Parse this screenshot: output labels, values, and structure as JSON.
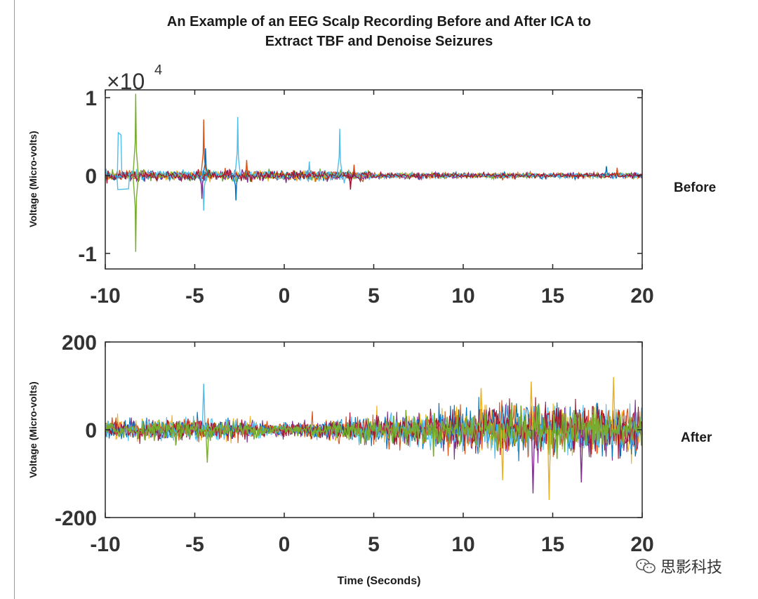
{
  "title_line1": "An Example of an EEG Scalp Recording Before and After ICA to",
  "title_line2": "Extract TBF and Denoise Seizures",
  "watermark_text": "思影科技",
  "colors": {
    "blue": "#0072BD",
    "orange": "#D95319",
    "yellow": "#EDB120",
    "purple": "#7E2F8E",
    "green": "#77AC30",
    "cyan": "#4DBEEE",
    "red": "#A2142F"
  },
  "chart_data": [
    {
      "type": "line",
      "name": "before",
      "side_label": "Before",
      "ylabel": "Voltage (Micro-volts)",
      "exponent_label": "×10",
      "exponent_power": "4",
      "xlim": [
        -10,
        20
      ],
      "ylim": [
        -1.2,
        1.1
      ],
      "xticks": [
        -10,
        -5,
        0,
        5,
        10,
        15,
        20
      ],
      "xtick_labels": [
        "-10",
        "-5",
        "0",
        "5",
        "10",
        "15",
        "20"
      ],
      "yticks": [
        -1,
        0,
        1
      ],
      "ytick_labels": [
        "-1",
        "0",
        "1"
      ],
      "baseline_noise": 0.025,
      "artifacts": [
        {
          "t": -9.2,
          "amp": 0.55,
          "color": "cyan",
          "kind": "block",
          "width": 0.25
        },
        {
          "t": -9.0,
          "amp": -0.18,
          "color": "cyan",
          "kind": "block",
          "width": 0.7
        },
        {
          "t": -8.3,
          "amp": 1.05,
          "color": "green",
          "kind": "spike"
        },
        {
          "t": -8.3,
          "amp": -0.98,
          "color": "green",
          "kind": "spike"
        },
        {
          "t": -4.5,
          "amp": 0.72,
          "color": "orange",
          "kind": "spike"
        },
        {
          "t": -4.5,
          "amp": -0.45,
          "color": "cyan",
          "kind": "spike"
        },
        {
          "t": -4.6,
          "amp": -0.3,
          "color": "purple",
          "kind": "spike"
        },
        {
          "t": -4.4,
          "amp": 0.35,
          "color": "blue",
          "kind": "spike"
        },
        {
          "t": -2.6,
          "amp": 0.75,
          "color": "cyan",
          "kind": "spike"
        },
        {
          "t": -2.7,
          "amp": -0.32,
          "color": "blue",
          "kind": "spike"
        },
        {
          "t": -2.1,
          "amp": 0.2,
          "color": "orange",
          "kind": "spike"
        },
        {
          "t": 1.4,
          "amp": 0.18,
          "color": "cyan",
          "kind": "spike"
        },
        {
          "t": 3.1,
          "amp": 0.6,
          "color": "cyan",
          "kind": "spike"
        },
        {
          "t": 3.7,
          "amp": -0.18,
          "color": "red",
          "kind": "spike"
        },
        {
          "t": 3.9,
          "amp": 0.14,
          "color": "orange",
          "kind": "spike"
        },
        {
          "t": 18.0,
          "amp": 0.12,
          "color": "blue",
          "kind": "spike"
        },
        {
          "t": 18.6,
          "amp": 0.1,
          "color": "orange",
          "kind": "spike"
        }
      ]
    },
    {
      "type": "line",
      "name": "after",
      "side_label": "After",
      "ylabel": "Voltage (Micro-volts)",
      "xlabel": "Time (Seconds)",
      "xlim": [
        -10,
        20
      ],
      "ylim": [
        -200,
        200
      ],
      "xticks": [
        -10,
        -5,
        0,
        5,
        10,
        15,
        20
      ],
      "xtick_labels": [
        "-10",
        "-5",
        "0",
        "5",
        "10",
        "15",
        "20"
      ],
      "yticks": [
        -200,
        0,
        200
      ],
      "ytick_labels": [
        "-200",
        "0",
        "200"
      ],
      "series_colors": [
        "yellow",
        "purple",
        "blue",
        "orange",
        "cyan",
        "red",
        "green"
      ],
      "amplitude_envelope": [
        {
          "t": -10,
          "amp": 20
        },
        {
          "t": -5,
          "amp": 25
        },
        {
          "t": 0,
          "amp": 15
        },
        {
          "t": 5,
          "amp": 30
        },
        {
          "t": 10,
          "amp": 45
        },
        {
          "t": 15,
          "amp": 55
        },
        {
          "t": 20,
          "amp": 50
        }
      ],
      "peaks": [
        {
          "t": -4.5,
          "amp": 105,
          "color": "cyan"
        },
        {
          "t": -4.3,
          "amp": -75,
          "color": "green"
        },
        {
          "t": 11.0,
          "amp": 95,
          "color": "yellow"
        },
        {
          "t": 13.8,
          "amp": 110,
          "color": "yellow"
        },
        {
          "t": 14.8,
          "amp": -160,
          "color": "yellow"
        },
        {
          "t": 13.9,
          "amp": -145,
          "color": "purple"
        },
        {
          "t": 18.4,
          "amp": 120,
          "color": "yellow"
        },
        {
          "t": 12.2,
          "amp": -115,
          "color": "yellow"
        },
        {
          "t": 16.6,
          "amp": -120,
          "color": "purple"
        }
      ]
    }
  ]
}
